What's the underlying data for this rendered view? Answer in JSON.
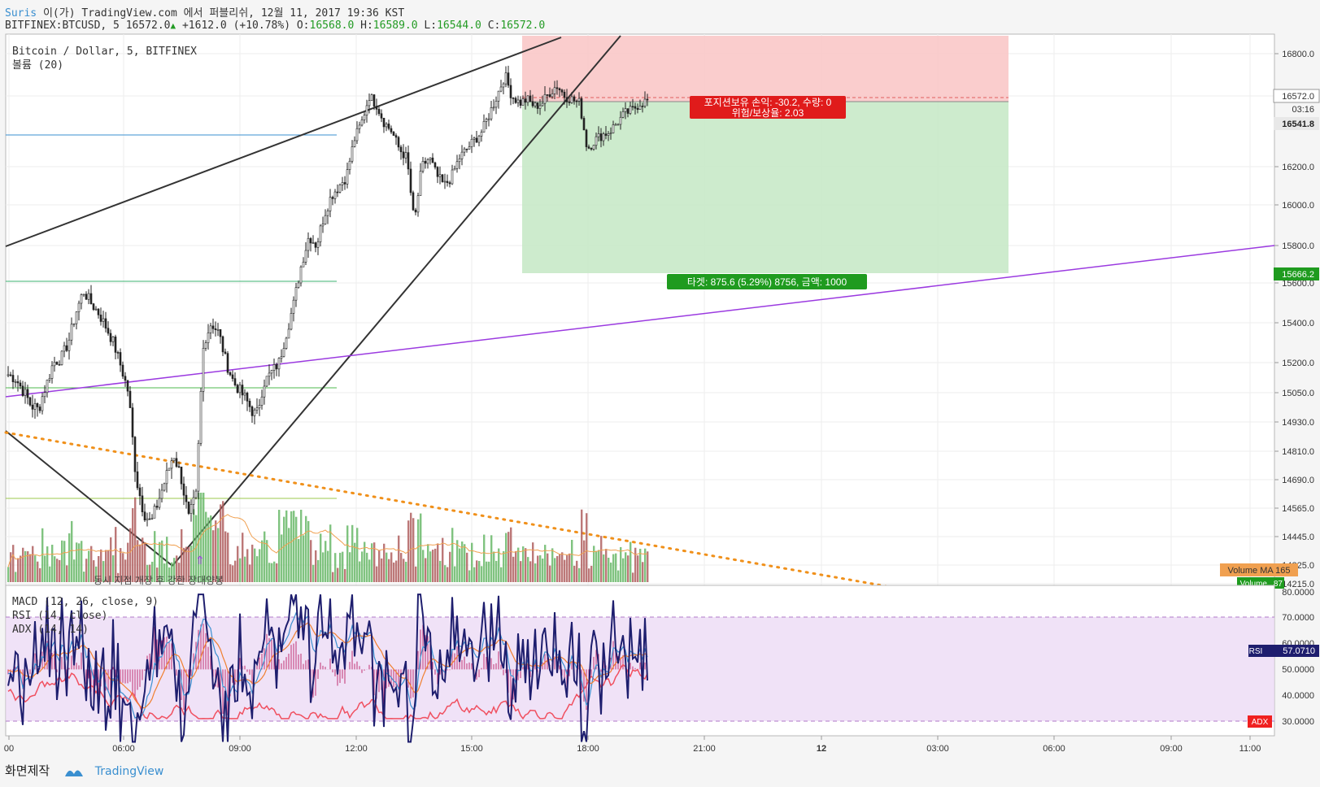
{
  "header": {
    "author": "Suris",
    "published": "이(가) TradingView.com 에서 퍼블리쉬, 12월 11, 2017 19:36 KST",
    "symbol": "BITFINEX:BTCUSD, 5",
    "last": "16572.0",
    "change": "+1612.0 (+10.78%)",
    "o_label": "O:",
    "o": "16568.0",
    "h_label": "H:",
    "h": "16589.0",
    "l_label": "L:",
    "l": "16544.0",
    "c_label": "C:",
    "c": "16572.0"
  },
  "chart_data": {
    "type": "candlestick",
    "title": "Bitcoin / Dollar, 5, BITFINEX",
    "volume_legend": "볼륨 (20)",
    "price_axis_ticks": [
      "16800.0",
      "16600.0",
      "16200.0",
      "16000.0",
      "15800.0",
      "15600.0",
      "15400.0",
      "15200.0",
      "15050.0",
      "14930.0",
      "14810.0",
      "14690.0",
      "14565.0",
      "14445.0",
      "14325.0",
      "14215.0"
    ],
    "price_tags": {
      "last": "16572.0",
      "countdown": "03:16",
      "bid": "16541.8",
      "target": "15666.2"
    },
    "volume_tags": {
      "ma": "Volume MA  165",
      "vol_label": "Volume",
      "vol": "87"
    },
    "time_axis_ticks": [
      "00",
      "06:00",
      "09:00",
      "12:00",
      "15:00",
      "18:00",
      "21:00",
      "12",
      "03:00",
      "06:00",
      "09:00",
      "11:00"
    ],
    "position": {
      "stop_label": "포지션보유 손익: -30.2, 수량: 0",
      "rr_label": "위험/보상율: 2.03",
      "target_label": "타겟: 875.6 (5.29%) 8756, 금액: 1000"
    },
    "annotation": "동시 지점 개장 후 강한 장대양봉",
    "closes_approx": [
      15140,
      15120,
      15060,
      15000,
      14980,
      15080,
      15200,
      15220,
      15300,
      15450,
      15560,
      15500,
      15450,
      15380,
      15300,
      15180,
      15050,
      14700,
      14550,
      14500,
      14600,
      14700,
      14800,
      14700,
      14520,
      14620,
      15300,
      15400,
      15350,
      15200,
      15100,
      15050,
      15000,
      14950,
      15100,
      15150,
      15200,
      15350,
      15500,
      15700,
      15850,
      15800,
      15950,
      16050,
      16100,
      16150,
      16350,
      16450,
      16600,
      16550,
      16450,
      16400,
      16300,
      16250,
      15900,
      16200,
      16250,
      16150,
      16100,
      16150,
      16250,
      16300,
      16350,
      16400,
      16500,
      16600,
      16700,
      16600,
      16560,
      16580,
      16540,
      16560,
      16620,
      16650,
      16600,
      16580,
      16560,
      16300,
      16350,
      16380,
      16400,
      16450,
      16500,
      16520,
      16560,
      16572
    ],
    "oscillators": {
      "macd_label": "MACD (12, 26, close, 9)",
      "rsi_label": "RSI (14, close)",
      "adx_label": "ADX (14, 14)",
      "axis_ticks": [
        "80.0000",
        "70.0000",
        "60.0000",
        "50.0000",
        "40.0000",
        "30.0000"
      ],
      "rsi_value": "57.0710",
      "rsi_tag": "RSI",
      "adx_tag": "ADX"
    }
  },
  "footer": {
    "made_with": "화면제작",
    "brand": "TradingView"
  }
}
